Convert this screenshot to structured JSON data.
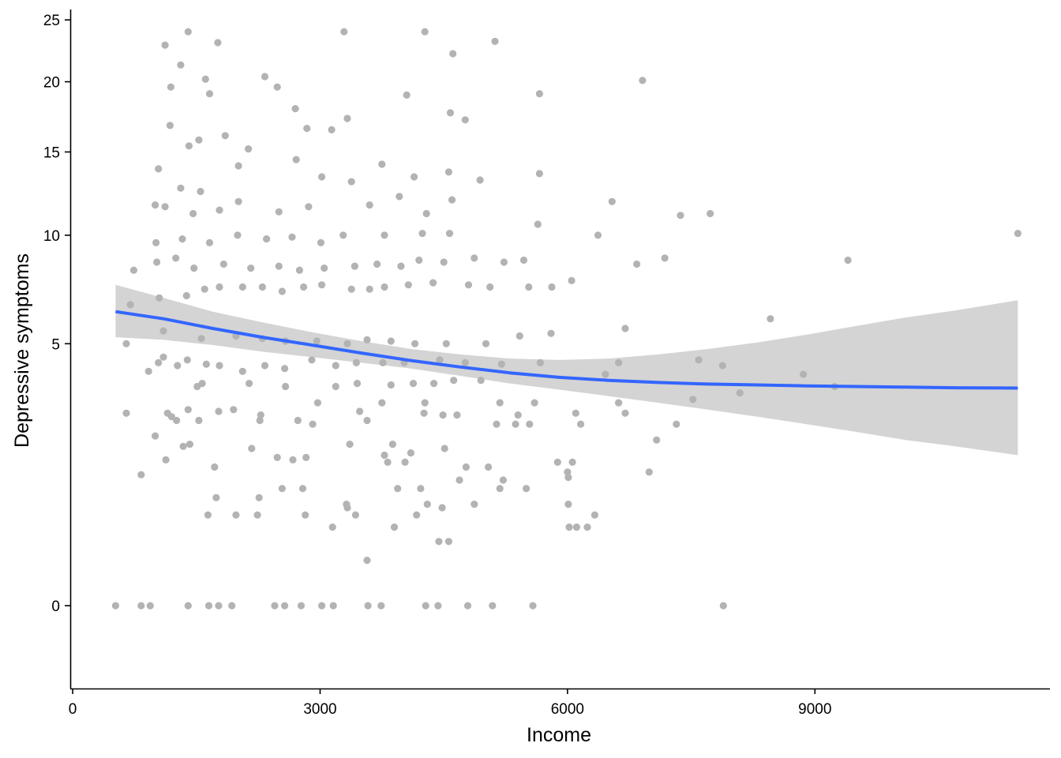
{
  "chart_data": {
    "type": "scatter",
    "title": "",
    "xlabel": "Income",
    "ylabel": "Depressive symptoms",
    "x_ticks": [
      0,
      3000,
      6000,
      9000
    ],
    "x_tick_labels": [
      "0",
      "3000",
      "6000",
      "9000"
    ],
    "y_ticks": [
      0,
      5,
      10,
      15,
      20,
      25
    ],
    "y_tick_labels": [
      "0",
      "5",
      "10",
      "15",
      "20",
      "25"
    ],
    "xlim": [
      -20,
      11850
    ],
    "ylim": [
      -0.5,
      25.9
    ],
    "y_scale": "sqrt",
    "grid": false,
    "legend": "none",
    "colors": {
      "points": "#b3b3b3",
      "smooth_line": "#3366ff",
      "ribbon": "#d4d4d4",
      "axis": "#000000"
    },
    "smooth": {
      "x": [
        520,
        1100,
        1700,
        2300,
        2900,
        3500,
        4100,
        4700,
        5300,
        5900,
        6500,
        7100,
        7700,
        8300,
        8900,
        9500,
        10100,
        10700,
        11460
      ],
      "y": [
        6.3,
        6.0,
        5.6,
        5.25,
        4.95,
        4.65,
        4.38,
        4.15,
        3.95,
        3.8,
        3.7,
        3.63,
        3.58,
        3.55,
        3.52,
        3.5,
        3.48,
        3.46,
        3.45
      ],
      "lower": [
        5.25,
        5.15,
        4.95,
        4.7,
        4.5,
        4.3,
        4.1,
        3.85,
        3.6,
        3.4,
        3.2,
        3.0,
        2.8,
        2.6,
        2.4,
        2.2,
        2.0,
        1.85,
        1.65
      ],
      "upper": [
        7.5,
        6.9,
        6.3,
        5.85,
        5.45,
        5.1,
        4.8,
        4.6,
        4.45,
        4.4,
        4.45,
        4.6,
        4.8,
        5.05,
        5.35,
        5.7,
        6.05,
        6.35,
        6.8
      ]
    },
    "points": [
      [
        520,
        0
      ],
      [
        830,
        0
      ],
      [
        940,
        0
      ],
      [
        1400,
        0
      ],
      [
        1650,
        0
      ],
      [
        1770,
        0
      ],
      [
        1930,
        0
      ],
      [
        2450,
        0
      ],
      [
        2570,
        0
      ],
      [
        2770,
        0
      ],
      [
        3020,
        0
      ],
      [
        3160,
        0
      ],
      [
        3580,
        0
      ],
      [
        3740,
        0
      ],
      [
        4280,
        0
      ],
      [
        4430,
        0
      ],
      [
        4790,
        0
      ],
      [
        5090,
        0
      ],
      [
        5580,
        0
      ],
      [
        7890,
        0
      ],
      [
        3570,
        0.15
      ],
      [
        4440,
        0.3
      ],
      [
        4560,
        0.3
      ],
      [
        3150,
        0.45
      ],
      [
        3900,
        0.45
      ],
      [
        6020,
        0.45
      ],
      [
        6110,
        0.45
      ],
      [
        6240,
        0.45
      ],
      [
        6330,
        0.6
      ],
      [
        1640,
        0.6
      ],
      [
        1980,
        0.6
      ],
      [
        2240,
        0.6
      ],
      [
        2820,
        0.6
      ],
      [
        3430,
        0.6
      ],
      [
        4170,
        0.6
      ],
      [
        3330,
        0.7
      ],
      [
        4480,
        0.7
      ],
      [
        1740,
        0.85
      ],
      [
        2260,
        0.85
      ],
      [
        4300,
        0.75
      ],
      [
        4870,
        0.75
      ],
      [
        3320,
        0.75
      ],
      [
        6010,
        0.75
      ],
      [
        2540,
        1.0
      ],
      [
        2790,
        1.0
      ],
      [
        4220,
        1.0
      ],
      [
        5180,
        1.0
      ],
      [
        5500,
        1.0
      ],
      [
        3940,
        1.0
      ],
      [
        4690,
        1.15
      ],
      [
        6010,
        1.2
      ],
      [
        830,
        1.25
      ],
      [
        1720,
        1.4
      ],
      [
        6990,
        1.3
      ],
      [
        5040,
        1.4
      ],
      [
        5220,
        1.15
      ],
      [
        4030,
        1.5
      ],
      [
        3820,
        1.5
      ],
      [
        5880,
        1.5
      ],
      [
        1130,
        1.55
      ],
      [
        1200,
        2.6
      ],
      [
        2670,
        1.55
      ],
      [
        6060,
        1.5
      ],
      [
        4770,
        1.4
      ],
      [
        6000,
        1.3
      ],
      [
        7080,
        2.0
      ],
      [
        1340,
        1.85
      ],
      [
        1420,
        1.9
      ],
      [
        3880,
        1.9
      ],
      [
        3360,
        1.9
      ],
      [
        2480,
        1.6
      ],
      [
        2830,
        1.6
      ],
      [
        3780,
        1.65
      ],
      [
        2170,
        1.8
      ],
      [
        4100,
        1.7
      ],
      [
        4510,
        1.8
      ],
      [
        1000,
        2.1
      ],
      [
        1260,
        2.5
      ],
      [
        1530,
        2.5
      ],
      [
        2270,
        2.5
      ],
      [
        2730,
        2.5
      ],
      [
        2910,
        2.4
      ],
      [
        3570,
        2.5
      ],
      [
        5140,
        2.4
      ],
      [
        5370,
        2.4
      ],
      [
        5540,
        2.4
      ],
      [
        6160,
        2.4
      ],
      [
        7320,
        2.4
      ],
      [
        650,
        2.7
      ],
      [
        1150,
        2.7
      ],
      [
        1400,
        2.8
      ],
      [
        1770,
        2.75
      ],
      [
        1950,
        2.8
      ],
      [
        2280,
        2.65
      ],
      [
        3480,
        2.75
      ],
      [
        4260,
        2.7
      ],
      [
        4490,
        2.65
      ],
      [
        4660,
        2.65
      ],
      [
        5400,
        2.65
      ],
      [
        6100,
        2.7
      ],
      [
        6700,
        2.7
      ],
      [
        2970,
        3.0
      ],
      [
        3750,
        3.0
      ],
      [
        4270,
        3.0
      ],
      [
        5180,
        3.0
      ],
      [
        5600,
        3.0
      ],
      [
        6620,
        3.0
      ],
      [
        7520,
        3.1
      ],
      [
        8090,
        3.3
      ],
      [
        9240,
        3.5
      ],
      [
        1510,
        3.5
      ],
      [
        1570,
        3.6
      ],
      [
        2140,
        3.6
      ],
      [
        2580,
        3.5
      ],
      [
        3190,
        3.5
      ],
      [
        3450,
        3.6
      ],
      [
        3860,
        3.55
      ],
      [
        4130,
        3.6
      ],
      [
        4380,
        3.6
      ],
      [
        4620,
        3.7
      ],
      [
        4950,
        3.7
      ],
      [
        6460,
        3.9
      ],
      [
        8860,
        3.9
      ],
      [
        920,
        4.0
      ],
      [
        1040,
        4.3
      ],
      [
        1100,
        4.5
      ],
      [
        1270,
        4.2
      ],
      [
        1390,
        4.4
      ],
      [
        1620,
        4.25
      ],
      [
        1780,
        4.2
      ],
      [
        2060,
        4.0
      ],
      [
        2330,
        4.2
      ],
      [
        2570,
        4.1
      ],
      [
        2900,
        4.4
      ],
      [
        3190,
        4.2
      ],
      [
        3440,
        4.3
      ],
      [
        3760,
        4.3
      ],
      [
        4020,
        4.3
      ],
      [
        4450,
        4.4
      ],
      [
        4760,
        4.3
      ],
      [
        5200,
        4.25
      ],
      [
        5670,
        4.3
      ],
      [
        6620,
        4.3
      ],
      [
        7880,
        4.2
      ],
      [
        7590,
        4.4
      ],
      [
        650,
        5.0
      ],
      [
        1100,
        5.5
      ],
      [
        1560,
        5.2
      ],
      [
        1980,
        5.3
      ],
      [
        2300,
        5.2
      ],
      [
        2580,
        5.1
      ],
      [
        2960,
        5.1
      ],
      [
        3330,
        5.0
      ],
      [
        3570,
        5.15
      ],
      [
        3860,
        5.1
      ],
      [
        4150,
        5.0
      ],
      [
        4530,
        5.0
      ],
      [
        5010,
        5.0
      ],
      [
        5420,
        5.3
      ],
      [
        5800,
        5.4
      ],
      [
        6700,
        5.6
      ],
      [
        8460,
        6.0
      ],
      [
        700,
        6.6
      ],
      [
        1050,
        6.9
      ],
      [
        1380,
        7.0
      ],
      [
        1600,
        7.3
      ],
      [
        1780,
        7.4
      ],
      [
        2060,
        7.4
      ],
      [
        2300,
        7.4
      ],
      [
        2540,
        7.2
      ],
      [
        2800,
        7.4
      ],
      [
        3020,
        7.5
      ],
      [
        3380,
        7.3
      ],
      [
        3600,
        7.3
      ],
      [
        3780,
        7.4
      ],
      [
        4070,
        7.5
      ],
      [
        4370,
        7.6
      ],
      [
        4800,
        7.5
      ],
      [
        5060,
        7.4
      ],
      [
        5530,
        7.4
      ],
      [
        5810,
        7.4
      ],
      [
        6050,
        7.7
      ],
      [
        740,
        8.2
      ],
      [
        1020,
        8.6
      ],
      [
        1250,
        8.8
      ],
      [
        1470,
        8.3
      ],
      [
        1830,
        8.5
      ],
      [
        2160,
        8.3
      ],
      [
        2500,
        8.4
      ],
      [
        2750,
        8.2
      ],
      [
        3050,
        8.3
      ],
      [
        3420,
        8.4
      ],
      [
        3690,
        8.5
      ],
      [
        3980,
        8.4
      ],
      [
        4200,
        8.7
      ],
      [
        4500,
        8.6
      ],
      [
        4870,
        8.8
      ],
      [
        5230,
        8.6
      ],
      [
        5470,
        8.7
      ],
      [
        6840,
        8.5
      ],
      [
        7180,
        8.8
      ],
      [
        9400,
        8.7
      ],
      [
        1010,
        9.6
      ],
      [
        1330,
        9.8
      ],
      [
        1660,
        9.6
      ],
      [
        2000,
        10.0
      ],
      [
        2350,
        9.8
      ],
      [
        2660,
        9.9
      ],
      [
        3010,
        9.6
      ],
      [
        3280,
        10.0
      ],
      [
        3780,
        10.0
      ],
      [
        4240,
        10.1
      ],
      [
        4570,
        10.1
      ],
      [
        5640,
        10.6
      ],
      [
        6370,
        10.0
      ],
      [
        11460,
        10.1
      ],
      [
        1000,
        11.7
      ],
      [
        1120,
        11.6
      ],
      [
        1460,
        11.2
      ],
      [
        1780,
        11.4
      ],
      [
        2010,
        11.9
      ],
      [
        2500,
        11.3
      ],
      [
        2860,
        11.6
      ],
      [
        3600,
        11.7
      ],
      [
        3960,
        12.2
      ],
      [
        4290,
        11.2
      ],
      [
        4600,
        12.0
      ],
      [
        6540,
        11.9
      ],
      [
        7370,
        11.1
      ],
      [
        7730,
        11.2
      ],
      [
        1040,
        13.9
      ],
      [
        1310,
        12.7
      ],
      [
        1550,
        12.5
      ],
      [
        2010,
        14.1
      ],
      [
        2710,
        14.5
      ],
      [
        3020,
        13.4
      ],
      [
        3380,
        13.1
      ],
      [
        3750,
        14.2
      ],
      [
        4140,
        13.4
      ],
      [
        4560,
        13.7
      ],
      [
        4940,
        13.2
      ],
      [
        5660,
        13.6
      ],
      [
        1180,
        16.8
      ],
      [
        1410,
        15.4
      ],
      [
        1530,
        15.8
      ],
      [
        1850,
        16.1
      ],
      [
        2130,
        15.2
      ],
      [
        2700,
        18.0
      ],
      [
        2840,
        16.6
      ],
      [
        3140,
        16.5
      ],
      [
        3330,
        17.3
      ],
      [
        4580,
        17.7
      ],
      [
        4760,
        17.2
      ],
      [
        1190,
        19.6
      ],
      [
        1310,
        21.3
      ],
      [
        1610,
        20.2
      ],
      [
        1660,
        19.1
      ],
      [
        2330,
        20.4
      ],
      [
        2480,
        19.6
      ],
      [
        4050,
        19.0
      ],
      [
        5660,
        19.1
      ],
      [
        6910,
        20.1
      ],
      [
        1120,
        22.9
      ],
      [
        1400,
        24.0
      ],
      [
        1760,
        23.1
      ],
      [
        3290,
        24.0
      ],
      [
        4270,
        24.0
      ],
      [
        4610,
        22.2
      ],
      [
        5120,
        23.2
      ]
    ]
  }
}
